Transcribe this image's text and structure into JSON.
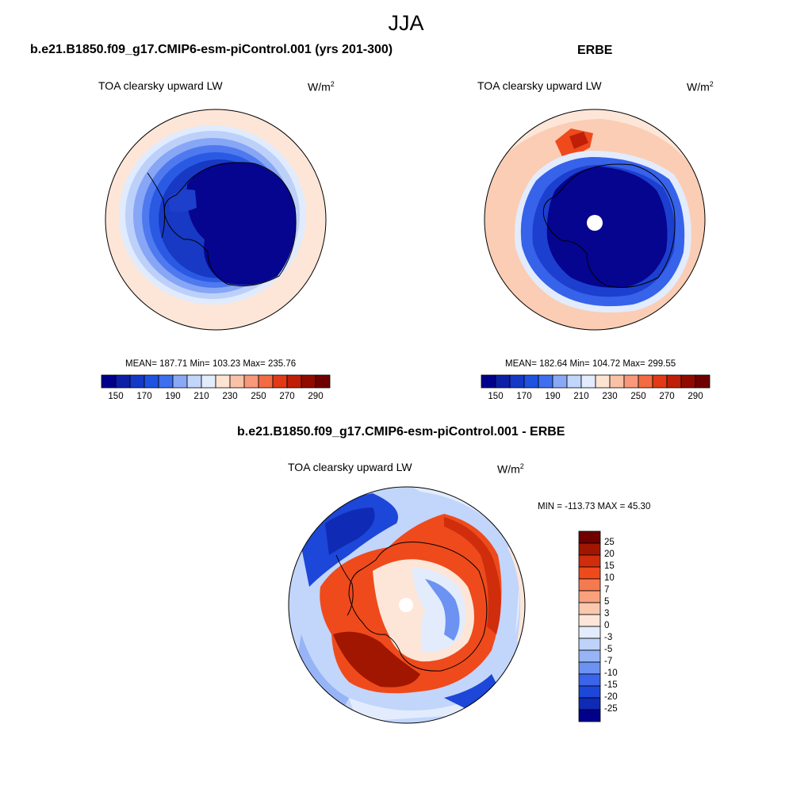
{
  "figure": {
    "title": "JJA",
    "panel_model": {
      "title": "b.e21.B1850.f09_g17.CMIP6-esm-piControl.001 (yrs 201-300)",
      "variable": "TOA clearsky upward LW",
      "units": "W/m",
      "units_exp": "2",
      "stats": "MEAN= 187.71  Min= 103.23  Max= 235.76"
    },
    "panel_obs": {
      "title": "ERBE",
      "variable": "TOA clearsky upward LW",
      "units": "W/m",
      "units_exp": "2",
      "stats": "MEAN= 182.64  Min= 104.72  Max= 299.55"
    },
    "panel_diff": {
      "title": "b.e21.B1850.f09_g17.CMIP6-esm-piControl.001 - ERBE",
      "variable": "TOA clearsky upward LW",
      "units": "W/m",
      "units_exp": "2",
      "stats": "MIN = -113.73 MAX =  45.30"
    },
    "colorbar_abs": {
      "colors": [
        "#00008b",
        "#0d1fa6",
        "#1539c7",
        "#1f52e0",
        "#3e6fef",
        "#8aa8f5",
        "#c2d5fb",
        "#e2ecfd",
        "#fde3d2",
        "#f9c2a6",
        "#f7997a",
        "#f36b43",
        "#e23a16",
        "#bf1f08",
        "#900a00",
        "#700000"
      ],
      "tick_labels": [
        "150",
        "170",
        "190",
        "210",
        "230",
        "250",
        "270",
        "290"
      ]
    },
    "colorbar_diff": {
      "colors": [
        "#700000",
        "#a11600",
        "#cf2d0c",
        "#ef4a1c",
        "#f57a4f",
        "#f9a07c",
        "#fbc8ad",
        "#fde6d8",
        "#e2ecfd",
        "#bfd2fa",
        "#96b4f6",
        "#6c92f2",
        "#3a64ea",
        "#1c47d8",
        "#0f2ab5",
        "#00008b"
      ],
      "tick_labels": [
        "25",
        "20",
        "15",
        "10",
        "7",
        "5",
        "3",
        "0",
        "-3",
        "-5",
        "-7",
        "-10",
        "-15",
        "-20",
        "-25"
      ]
    }
  },
  "chart_data": [
    {
      "type": "heatmap",
      "title": "TOA clearsky upward LW",
      "map": "south polar stereographic, Antarctica",
      "units": "W/m2",
      "levels": [
        150,
        160,
        170,
        180,
        190,
        200,
        210,
        220,
        230,
        240,
        250,
        260,
        270,
        280,
        290
      ],
      "mean": 187.71,
      "min": 103.23,
      "max": 235.76
    },
    {
      "type": "heatmap",
      "title": "TOA clearsky upward LW",
      "map": "south polar stereographic, Antarctica",
      "units": "W/m2",
      "levels": [
        150,
        160,
        170,
        180,
        190,
        200,
        210,
        220,
        230,
        240,
        250,
        260,
        270,
        280,
        290
      ],
      "mean": 182.64,
      "min": 104.72,
      "max": 299.55
    },
    {
      "type": "heatmap",
      "title": "TOA clearsky upward LW",
      "map": "south polar stereographic, Antarctica",
      "units": "W/m2",
      "levels": [
        -25,
        -20,
        -15,
        -10,
        -7,
        -5,
        -3,
        0,
        3,
        5,
        7,
        10,
        15,
        20,
        25
      ],
      "min": -113.73,
      "max": 45.3
    }
  ]
}
